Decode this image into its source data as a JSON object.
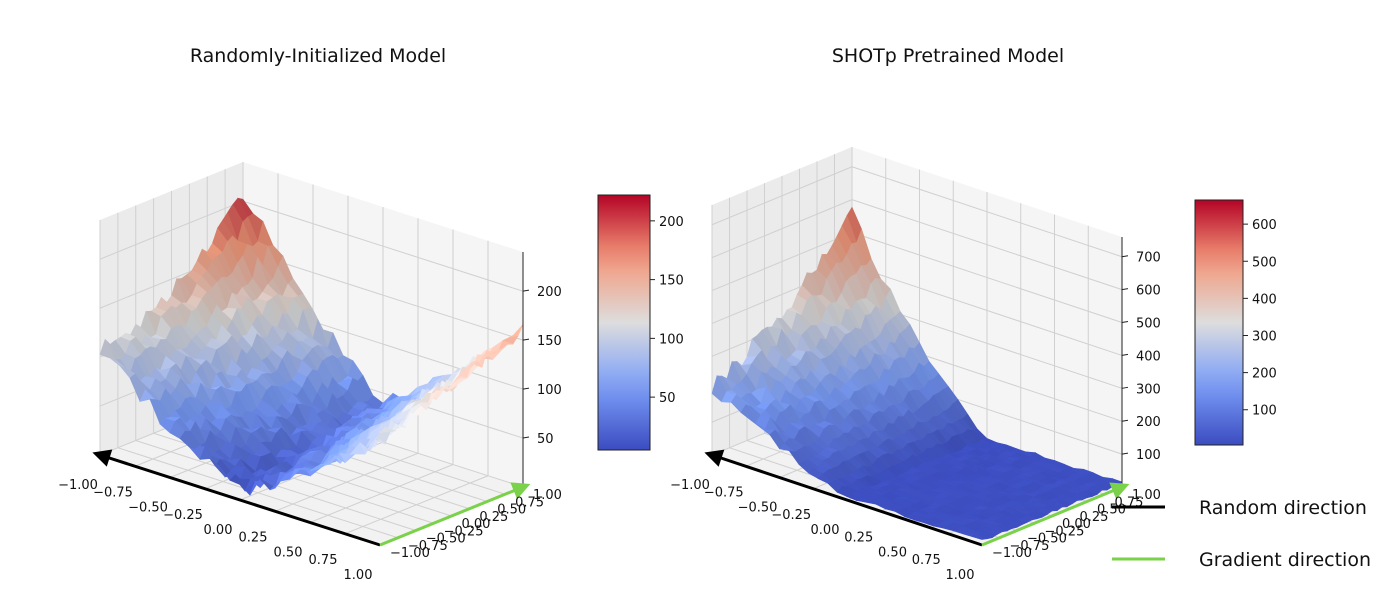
{
  "chart_data": [
    {
      "type": "surface",
      "title": "Randomly-Initialized Model",
      "x_ticks": [
        "−1.00",
        "−0.75",
        "−0.50",
        "−0.25",
        "0.00",
        "0.25",
        "0.50",
        "0.75",
        "1.00"
      ],
      "y_ticks": [
        "−1.00",
        "−0.75",
        "−0.50",
        "−0.25",
        "0.00",
        "0.25",
        "0.50",
        "0.75",
        "1.00"
      ],
      "z_ticks": [
        "50",
        "100",
        "150",
        "200"
      ],
      "zlim": [
        0,
        240
      ],
      "colorbar_ticks": [
        "50",
        "100",
        "150",
        "200"
      ],
      "colorbar_range": [
        5,
        222
      ],
      "colormap": "coolwarm",
      "surface_summary": {
        "corner_max_x_neg1_y_pos1": 215,
        "corner_x_pos1_y_pos1": 170,
        "corner_x_neg1_y_neg1": 140,
        "corner_x_pos1_y_neg1": 135,
        "minimum_near_center": 10
      },
      "x_extent": [
        -1,
        1
      ],
      "y_extent": [
        -1,
        1
      ]
    },
    {
      "type": "surface",
      "title": "SHOTp Pretrained Model",
      "x_ticks": [
        "−1.00",
        "−0.75",
        "−0.50",
        "−0.25",
        "0.00",
        "0.25",
        "0.50",
        "0.75",
        "1.00"
      ],
      "y_ticks": [
        "−1.00",
        "−0.75",
        "−0.50",
        "−0.25",
        "0.00",
        "0.25",
        "0.50",
        "0.75",
        "1.00"
      ],
      "z_ticks": [
        "100",
        "200",
        "300",
        "400",
        "500",
        "600",
        "700"
      ],
      "zlim": [
        0,
        760
      ],
      "colorbar_ticks": [
        "100",
        "200",
        "300",
        "400",
        "500",
        "600"
      ],
      "colorbar_range": [
        5,
        665
      ],
      "colormap": "coolwarm",
      "surface_summary": {
        "corner_max_x_neg1_y_pos1": 650,
        "plateau_low_region_x_pos": 30,
        "ridge_x_neg1": 450
      },
      "x_extent": [
        -1,
        1
      ],
      "y_extent": [
        -1,
        1
      ]
    }
  ],
  "legend": {
    "items": [
      {
        "label": "Random direction",
        "color": "#000000"
      },
      {
        "label": "Gradient direction",
        "color": "#7ad14a"
      }
    ]
  }
}
